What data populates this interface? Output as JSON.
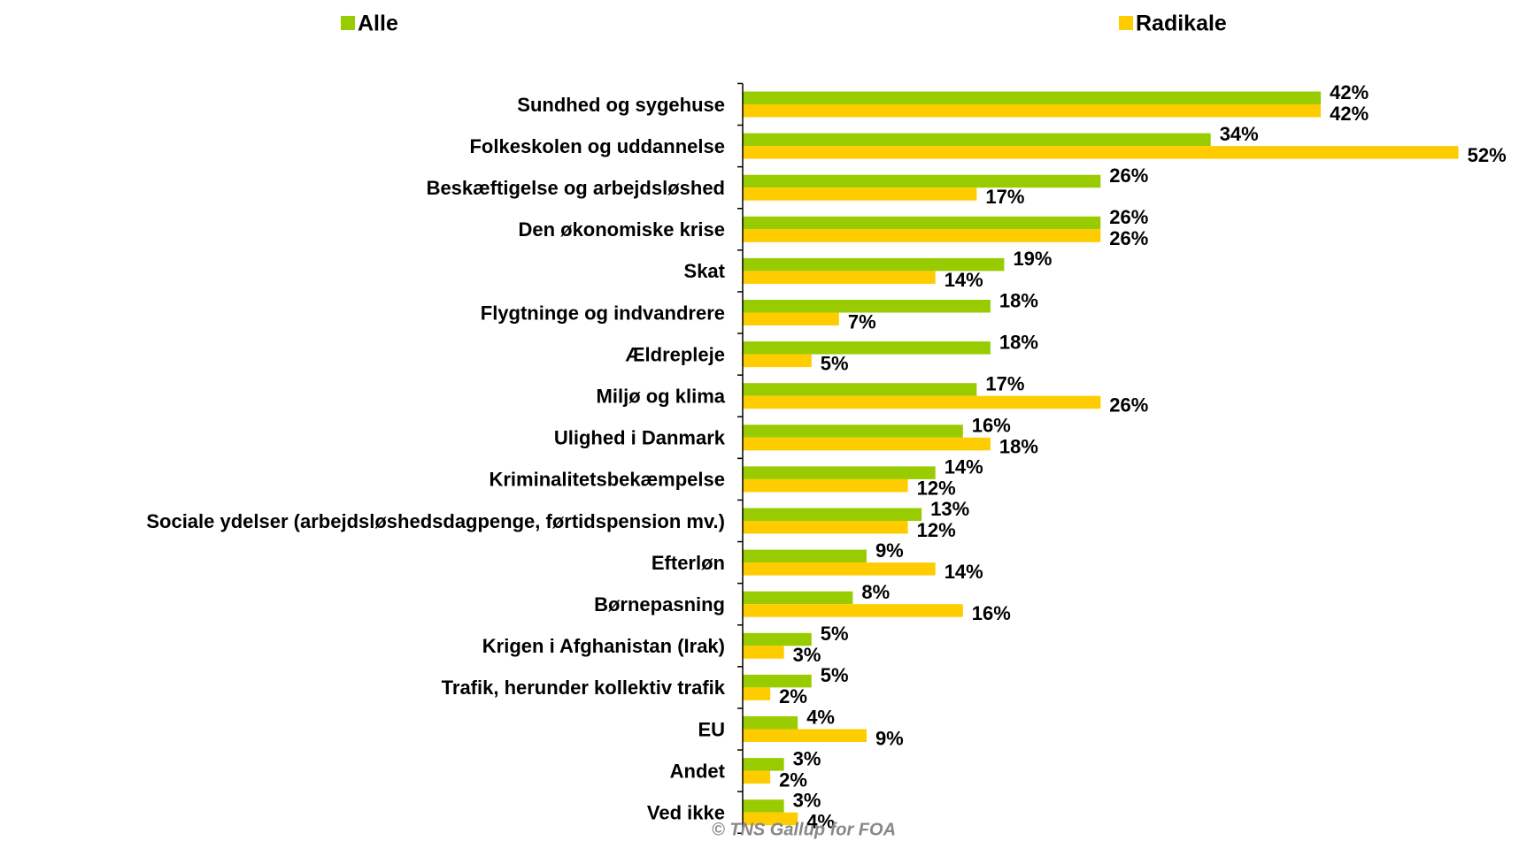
{
  "chart_data": {
    "type": "barh",
    "source": "© TNS Gallup for FOA",
    "categories": [
      "Sundhed og sygehuse",
      "Folkeskolen og uddannelse",
      "Beskæftigelse og arbejdsløshed",
      "Den økonomiske krise",
      "Skat",
      "Flygtninge og indvandrere",
      "Ældrepleje",
      "Miljø og klima",
      "Ulighed i Danmark",
      "Kriminalitetsbekæmpelse",
      "Sociale ydelser (arbejdsløshedsdagpenge, førtidspension mv.)",
      "Efterløn",
      "Børnepasning",
      "Krigen i Afghanistan (Irak)",
      "Trafik, herunder kollektiv trafik",
      "EU",
      "Andet",
      "Ved ikke"
    ],
    "series": [
      {
        "name": "Alle",
        "color": "#99cc00",
        "values": [
          42,
          34,
          26,
          26,
          19,
          18,
          18,
          17,
          16,
          14,
          13,
          9,
          8,
          5,
          5,
          4,
          3,
          3
        ],
        "value_labels": [
          "42%",
          "34%",
          "26%",
          "26%",
          "19%",
          "18%",
          "18%",
          "17%",
          "16%",
          "14%",
          "13%",
          "9%",
          "8%",
          "5%",
          "5%",
          "4%",
          "3%",
          "3%"
        ]
      },
      {
        "name": "Radikale",
        "color": "#ffcc00",
        "values": [
          42,
          52,
          17,
          26,
          14,
          7,
          5,
          26,
          18,
          12,
          12,
          14,
          16,
          3,
          2,
          9,
          2,
          4
        ],
        "value_labels": [
          "42%",
          "52%",
          "17%",
          "26%",
          "14%",
          "7%",
          "5%",
          "26%",
          "18%",
          "12%",
          "12%",
          "14%",
          "16%",
          "3%",
          "2%",
          "9%",
          "2%",
          "4%"
        ]
      }
    ],
    "legend": "top"
  }
}
